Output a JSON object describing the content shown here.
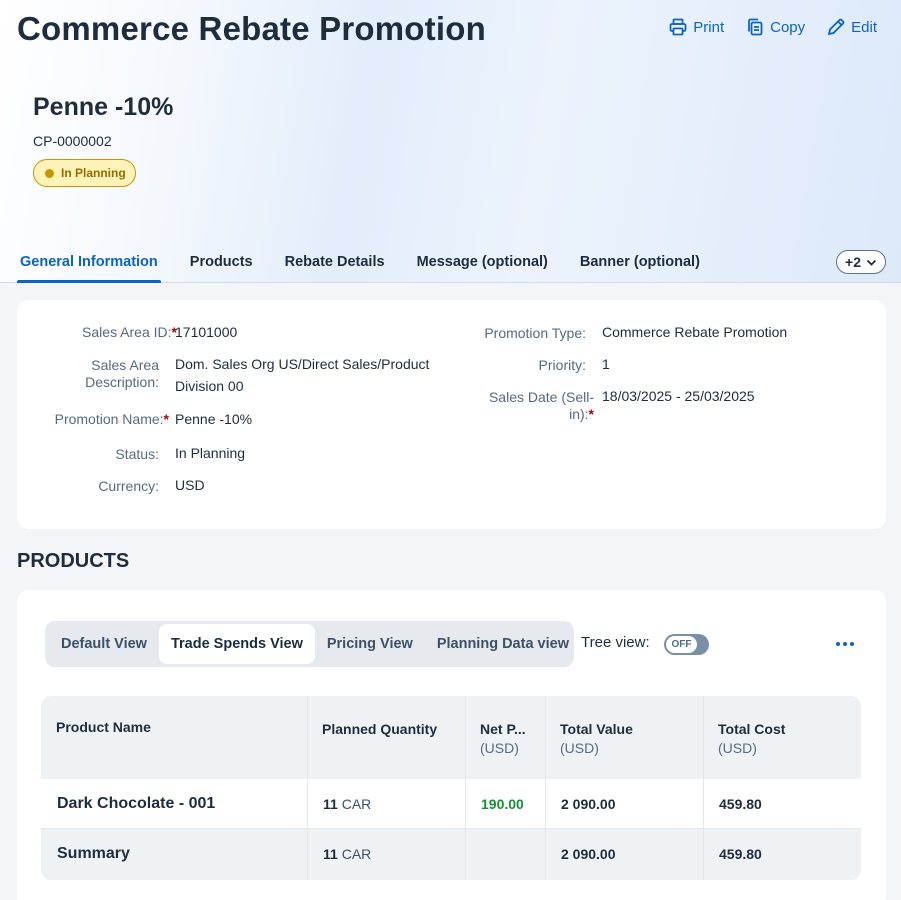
{
  "app": {
    "title": "Commerce Rebate Promotion"
  },
  "actions": {
    "print": "Print",
    "copy": "Copy",
    "edit": "Edit"
  },
  "object": {
    "title": "Penne -10%",
    "id": "CP-0000002",
    "status": "In Planning",
    "status_color": "#c89400"
  },
  "tabs": [
    {
      "label": "General Information"
    },
    {
      "label": "Products"
    },
    {
      "label": "Rebate Details"
    },
    {
      "label": "Message (optional)"
    },
    {
      "label": "Banner (optional)"
    }
  ],
  "more_tabs": "+2",
  "general": {
    "sales_area_id_label": "Sales Area ID:",
    "sales_area_id": "17101000",
    "sales_area_desc_label_1": "Sales Area",
    "sales_area_desc_label_2": "Description:",
    "sales_area_desc_1": "Dom. Sales Org US/Direct Sales/Product",
    "sales_area_desc_2": "Division 00",
    "promotion_name_label": "Promotion Name:",
    "promotion_name": "Penne -10%",
    "status_label": "Status:",
    "status": "In Planning",
    "currency_label": "Currency:",
    "currency": "USD",
    "promotion_type_label": "Promotion Type:",
    "promotion_type": "Commerce Rebate Promotion",
    "priority_label": "Priority:",
    "priority": "1",
    "sales_date_label_1": "Sales Date (Sell-",
    "sales_date_label_2": "in):",
    "sales_date": "18/03/2025 - 25/03/2025"
  },
  "products": {
    "section_title": "PRODUCTS",
    "views": [
      "Default View",
      "Trade Spends View",
      "Pricing View",
      "Planning Data view"
    ],
    "active_view": "Trade Spends View",
    "tree_view_label": "Tree view:",
    "tree_view_state": "OFF",
    "columns": {
      "product_name": "Product Name",
      "planned_quantity": "Planned Quantity",
      "net_price": "Net P...",
      "net_price_unit": "(USD)",
      "total_value": "Total Value",
      "total_value_unit": "(USD)",
      "total_cost": "Total Cost",
      "total_cost_unit": "(USD)"
    },
    "rows": [
      {
        "name": "Dark Chocolate - 001",
        "qty": "11",
        "uom": "CAR",
        "net_price": "190.00",
        "total_value": "2 090.00",
        "total_cost": "459.80"
      }
    ],
    "summary": {
      "name": "Summary",
      "qty": "11",
      "uom": "CAR",
      "total_value": "2 090.00",
      "total_cost": "459.80"
    }
  }
}
